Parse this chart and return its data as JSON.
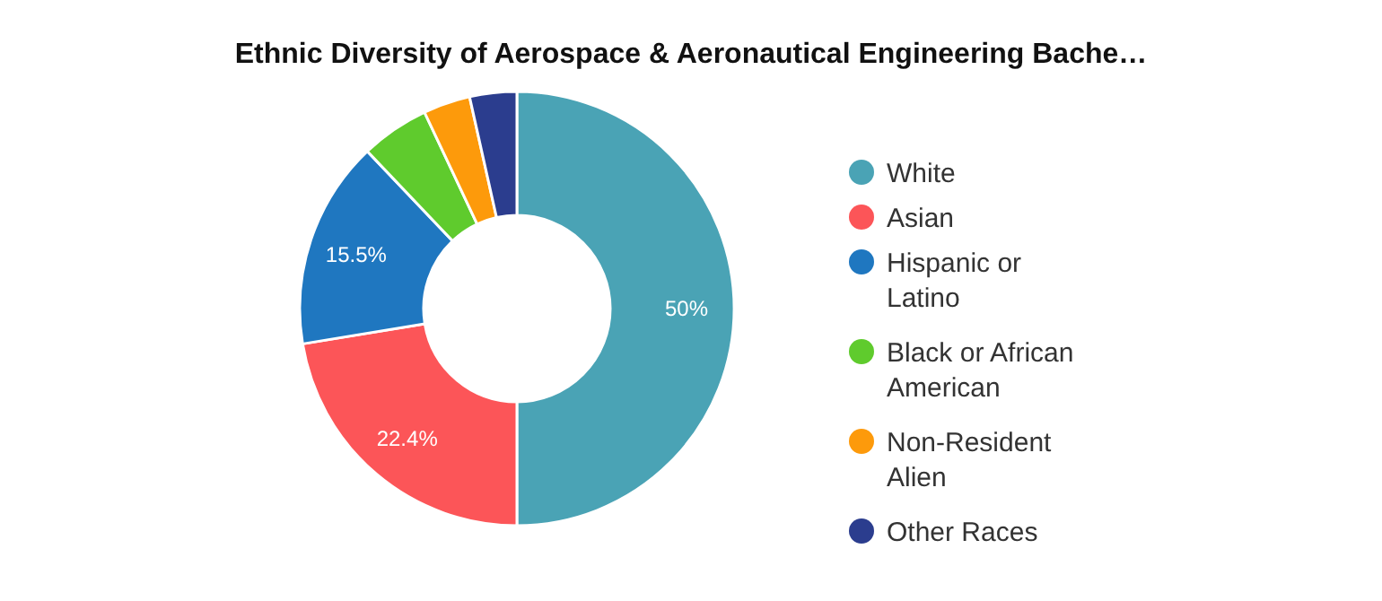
{
  "chart_data": {
    "type": "donut",
    "title": "Ethnic Diversity of Aerospace & Aeronautical Engineering Bache…",
    "categories": [
      "White",
      "Asian",
      "Hispanic or Latino",
      "Black or African American",
      "Non-Resident Alien",
      "Other Races"
    ],
    "values": [
      50,
      22.4,
      15.5,
      5.1,
      3.5,
      3.5
    ],
    "colors": [
      "#4aa3b5",
      "#fc5558",
      "#1f77c0",
      "#5fcb2d",
      "#fd9a0b",
      "#2b3d8e"
    ],
    "value_labels": [
      "50%",
      "22.4%",
      "15.5%",
      null,
      null,
      null
    ],
    "legend": "right"
  }
}
